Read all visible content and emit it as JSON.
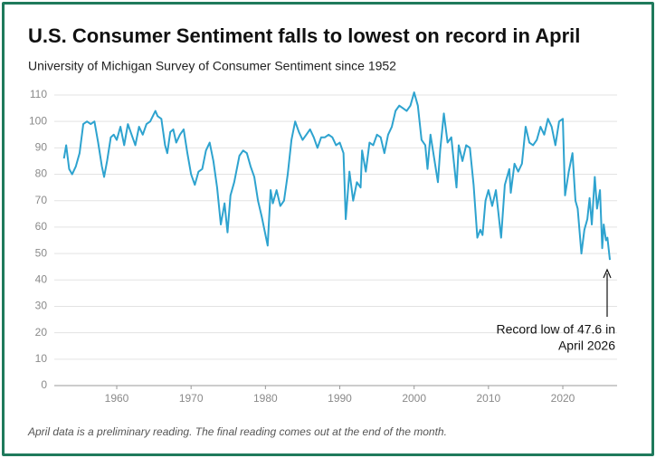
{
  "chart_data": {
    "type": "line",
    "title": "U.S. Consumer Sentiment falls to lowest on record in April",
    "subtitle": "University of Michigan Survey of Consumer Sentiment since 1952",
    "note": "April data is a preliminary reading. The final reading comes out at the end of the month.",
    "annotation": [
      "Record low of 47.6 in",
      "April 2026"
    ],
    "xlim": [
      1951.6,
      2027.3
    ],
    "xticks": [
      1960,
      1970,
      1980,
      1990,
      2000,
      2010,
      2020
    ],
    "ylim": [
      0,
      110
    ],
    "yticks": [
      0,
      10,
      20,
      30,
      40,
      50,
      60,
      70,
      80,
      90,
      100,
      110
    ],
    "grid": true,
    "x": [
      1952.9,
      1953.2,
      1953.6,
      1954.0,
      1954.5,
      1955.0,
      1955.5,
      1956.0,
      1956.5,
      1957.0,
      1957.5,
      1958.0,
      1958.3,
      1958.7,
      1959.2,
      1959.6,
      1960.0,
      1960.5,
      1961.0,
      1961.5,
      1962.0,
      1962.5,
      1963.0,
      1963.5,
      1964.0,
      1964.5,
      1965.2,
      1965.5,
      1966.0,
      1966.5,
      1966.8,
      1967.2,
      1967.6,
      1968.0,
      1968.5,
      1969.0,
      1969.5,
      1970.0,
      1970.5,
      1971.0,
      1971.5,
      1972.0,
      1972.5,
      1973.0,
      1973.5,
      1974.0,
      1974.5,
      1974.9,
      1975.3,
      1975.8,
      1976.5,
      1977.0,
      1977.5,
      1978.0,
      1978.5,
      1979.0,
      1979.5,
      1980.3,
      1980.7,
      1981.0,
      1981.5,
      1982.0,
      1982.5,
      1983.0,
      1983.5,
      1984.0,
      1984.5,
      1985.0,
      1985.5,
      1986.0,
      1986.5,
      1987.0,
      1987.5,
      1988.0,
      1988.5,
      1989.0,
      1989.5,
      1990.0,
      1990.5,
      1990.8,
      1991.3,
      1991.8,
      1992.3,
      1992.8,
      1993.0,
      1993.5,
      1994.0,
      1994.5,
      1995.0,
      1995.5,
      1996.0,
      1996.5,
      1997.0,
      1997.5,
      1998.0,
      1998.5,
      1999.0,
      1999.5,
      2000.0,
      2000.5,
      2001.0,
      2001.5,
      2001.8,
      2002.2,
      2002.7,
      2003.2,
      2003.5,
      2004.0,
      2004.5,
      2005.0,
      2005.7,
      2006.0,
      2006.5,
      2007.0,
      2007.5,
      2008.0,
      2008.5,
      2008.9,
      2009.2,
      2009.6,
      2010.0,
      2010.5,
      2011.0,
      2011.7,
      2012.2,
      2012.8,
      2013.0,
      2013.5,
      2014.0,
      2014.5,
      2015.0,
      2015.5,
      2016.0,
      2016.5,
      2017.0,
      2017.5,
      2018.0,
      2018.5,
      2019.0,
      2019.5,
      2020.0,
      2020.3,
      2020.8,
      2021.3,
      2021.7,
      2022.0,
      2022.5,
      2022.9,
      2023.3,
      2023.6,
      2023.9,
      2024.3,
      2024.6,
      2025.0,
      2025.3,
      2025.5,
      2025.8,
      2026.0,
      2026.33
    ],
    "series": [
      {
        "name": "Consumer Sentiment",
        "color": "#2ea3cf",
        "values": [
          86,
          91,
          82,
          80,
          83,
          88,
          99,
          100,
          99,
          100,
          92,
          83,
          79,
          85,
          94,
          95,
          93,
          98,
          91,
          99,
          95,
          91,
          98,
          95,
          99,
          100,
          104,
          102,
          101,
          91,
          88,
          96,
          97,
          92,
          95,
          97,
          88,
          80,
          76,
          81,
          82,
          89,
          92,
          85,
          75,
          61,
          69,
          58,
          72,
          77,
          87,
          89,
          88,
          83,
          79,
          70,
          64,
          53,
          74,
          69,
          74,
          68,
          70,
          80,
          93,
          100,
          96,
          93,
          95,
          97,
          94,
          90,
          94,
          94,
          95,
          94,
          91,
          92,
          88,
          63,
          81,
          70,
          77,
          75,
          89,
          81,
          92,
          91,
          95,
          94,
          88,
          95,
          98,
          104,
          106,
          105,
          104,
          106,
          111,
          106,
          93,
          91,
          82,
          95,
          86,
          77,
          89,
          103,
          92,
          94,
          75,
          91,
          85,
          91,
          90,
          76,
          56,
          59,
          57,
          70,
          74,
          68,
          74,
          56,
          76,
          82,
          73,
          84,
          81,
          84,
          98,
          92,
          91,
          93,
          98,
          95,
          101,
          98,
          91,
          100,
          101,
          72,
          81,
          88,
          70,
          67,
          50,
          59,
          63,
          71,
          61,
          79,
          67,
          74,
          52,
          61,
          55,
          56,
          47.6
        ]
      }
    ]
  }
}
